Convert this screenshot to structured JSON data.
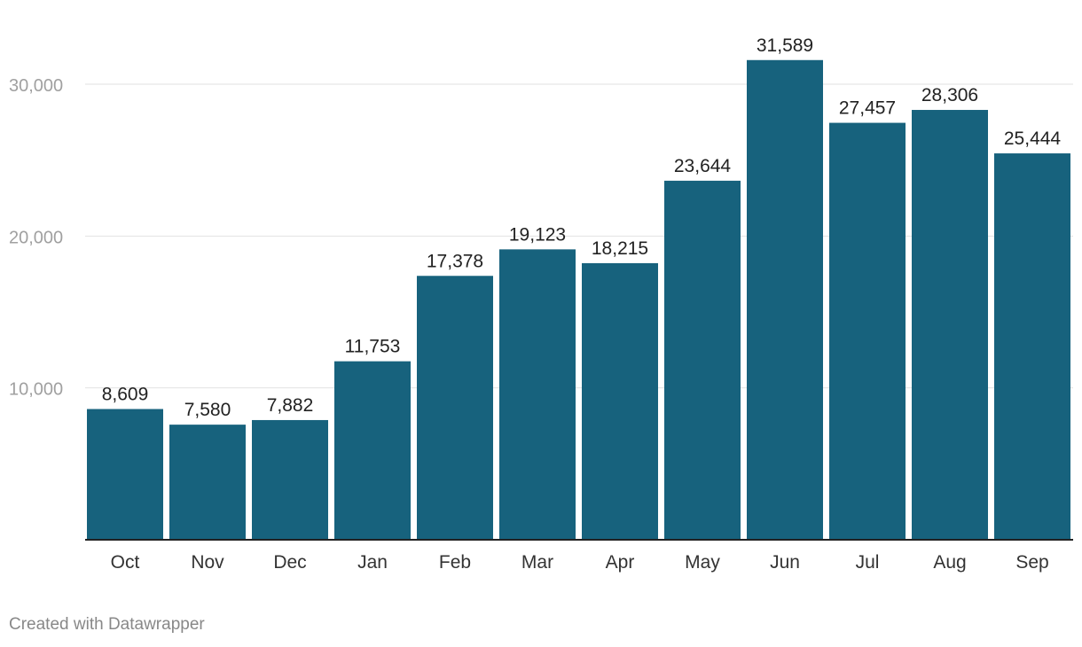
{
  "chart_data": {
    "type": "bar",
    "title": "",
    "xlabel": "",
    "ylabel": "",
    "categories": [
      "Oct",
      "Nov",
      "Dec",
      "Jan",
      "Feb",
      "Mar",
      "Apr",
      "May",
      "Jun",
      "Jul",
      "Aug",
      "Sep"
    ],
    "values": [
      8609,
      7580,
      7882,
      11753,
      17378,
      19123,
      18215,
      23644,
      31589,
      27457,
      28306,
      25444
    ],
    "value_labels": [
      "8,609",
      "7,580",
      "7,882",
      "11,753",
      "17,378",
      "19,123",
      "18,215",
      "23,644",
      "31,589",
      "27,457",
      "28,306",
      "25,444"
    ],
    "ylim": [
      0,
      30000
    ],
    "yticks": [
      10000,
      20000,
      30000
    ],
    "ytick_labels": [
      "10,000",
      "20,000",
      "30,000"
    ],
    "grid": true,
    "bar_color": "#17627d"
  },
  "footer": {
    "credit": "Created with Datawrapper"
  }
}
